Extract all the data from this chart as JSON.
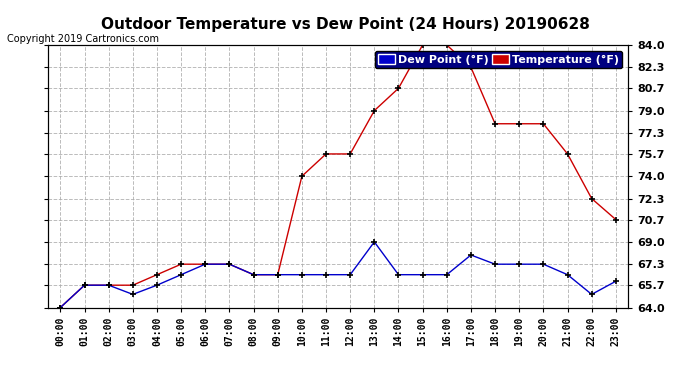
{
  "title": "Outdoor Temperature vs Dew Point (24 Hours) 20190628",
  "copyright": "Copyright 2019 Cartronics.com",
  "hours": [
    "00:00",
    "01:00",
    "02:00",
    "03:00",
    "04:00",
    "05:00",
    "06:00",
    "07:00",
    "08:00",
    "09:00",
    "10:00",
    "11:00",
    "12:00",
    "13:00",
    "14:00",
    "15:00",
    "16:00",
    "17:00",
    "18:00",
    "19:00",
    "20:00",
    "21:00",
    "22:00",
    "23:00"
  ],
  "temperature": [
    64.0,
    65.7,
    65.7,
    65.7,
    66.5,
    67.3,
    67.3,
    67.3,
    66.5,
    66.5,
    74.0,
    75.7,
    75.7,
    79.0,
    80.7,
    84.0,
    84.0,
    82.3,
    78.0,
    78.0,
    78.0,
    75.7,
    72.3,
    70.7
  ],
  "dew_point": [
    64.0,
    65.7,
    65.7,
    65.0,
    65.7,
    66.5,
    67.3,
    67.3,
    66.5,
    66.5,
    66.5,
    66.5,
    66.5,
    69.0,
    66.5,
    66.5,
    66.5,
    68.0,
    67.3,
    67.3,
    67.3,
    66.5,
    65.0,
    66.0
  ],
  "temp_color": "#cc0000",
  "dew_color": "#0000cc",
  "ylim": [
    64.0,
    84.0
  ],
  "yticks": [
    64.0,
    65.7,
    67.3,
    69.0,
    70.7,
    72.3,
    74.0,
    75.7,
    77.3,
    79.0,
    80.7,
    82.3,
    84.0
  ],
  "bg_color": "#ffffff",
  "grid_color": "#aaaaaa",
  "title_fontsize": 11,
  "legend_dew_label": "Dew Point (°F)",
  "legend_temp_label": "Temperature (°F)",
  "legend_dew_bg": "#0000cc",
  "legend_temp_bg": "#cc0000",
  "legend_frame_bg": "#000080"
}
